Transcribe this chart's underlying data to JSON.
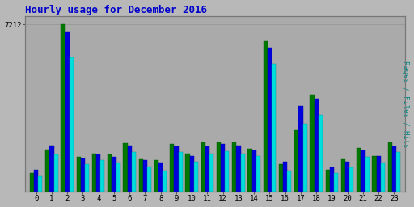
{
  "title": "Hourly usage for December 2016",
  "ylabel_right": "Pages / Files / Hits",
  "hours": [
    0,
    1,
    2,
    3,
    4,
    5,
    6,
    7,
    8,
    9,
    10,
    11,
    12,
    13,
    14,
    15,
    16,
    17,
    18,
    19,
    20,
    21,
    22,
    23
  ],
  "pages": [
    820,
    1820,
    7212,
    1500,
    1650,
    1600,
    2100,
    1400,
    1350,
    2050,
    1650,
    2150,
    2150,
    2150,
    1850,
    6500,
    1200,
    2650,
    4200,
    950,
    1400,
    1900,
    1550,
    2150
  ],
  "files": [
    940,
    2000,
    6900,
    1450,
    1620,
    1500,
    2000,
    1350,
    1250,
    1950,
    1550,
    1950,
    2050,
    1980,
    1800,
    6200,
    1300,
    3700,
    4000,
    1050,
    1300,
    1800,
    1550,
    1950
  ],
  "hits": [
    680,
    1600,
    5800,
    1200,
    1380,
    1280,
    1700,
    1100,
    900,
    1700,
    1300,
    1650,
    1750,
    1650,
    1550,
    5500,
    900,
    2950,
    3300,
    800,
    1050,
    1500,
    1250,
    1700
  ],
  "color_pages": "#007700",
  "color_files": "#0000dd",
  "color_hits": "#00dddd",
  "ytick_label": "7212",
  "ytick_val": 7212,
  "bg_color": "#b8b8b8",
  "plot_bg": "#aaaaaa",
  "title_color": "#0000cc",
  "ylabel_color": "#008888",
  "bar_width": 0.27,
  "figsize": [
    5.12,
    2.56
  ],
  "dpi": 100
}
